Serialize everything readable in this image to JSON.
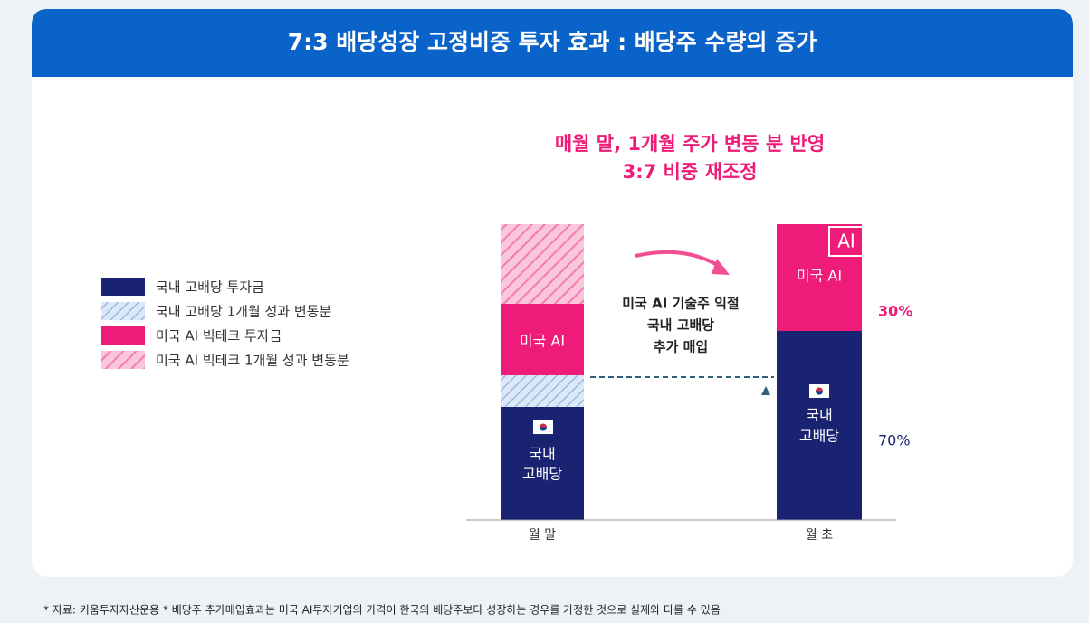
{
  "header": {
    "title": "7:3 배당성장 고정비중 투자 효과 : 배당주 수량의 증가"
  },
  "legend": {
    "items": [
      "국내 고배당 투자금",
      "국내 고배당 1개월 성과 변동분",
      "미국 AI 빅테크 투자금",
      "미국 AI 빅테크 1개월 성과 변동분"
    ]
  },
  "annotation": {
    "lines": [
      "매월 말, 1개월 주가 변동 분 반영",
      "3:7 비중 재조정"
    ]
  },
  "middle_note": {
    "lines": [
      "미국 AI 기술주 익절",
      "국내 고배당",
      "추가 매입"
    ]
  },
  "left_bar": {
    "label": "월 말",
    "us_segment": "미국 AI",
    "kr_segment": [
      "국내",
      "고배당"
    ]
  },
  "right_bar": {
    "label": "월 초",
    "us_segment": "미국 AI",
    "kr_segment": [
      "국내",
      "고배당"
    ],
    "us_share": "30%",
    "kr_share": "70%",
    "badge": "AI"
  },
  "footnote": "* 자료: 키움투자자산운용 * 배당주 추가매입효과는 미국 AI투자기업의 가격이 한국의 배당주보다 성장하는 경우를 가정한 것으로 실제와 다를 수 있음"
}
